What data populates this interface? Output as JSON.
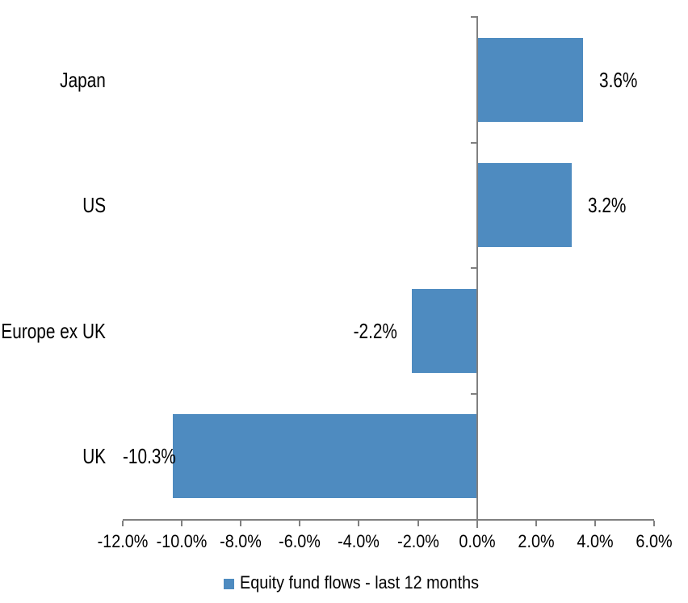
{
  "chart_data": {
    "type": "bar",
    "orientation": "horizontal",
    "categories": [
      "Japan",
      "US",
      "Europe ex UK",
      "UK"
    ],
    "series": [
      {
        "name": "Equity fund flows - last 12 months",
        "values": [
          3.6,
          3.2,
          -2.2,
          -10.3
        ]
      }
    ],
    "data_labels": [
      "3.6%",
      "3.2%",
      "-2.2%",
      "-10.3%"
    ],
    "x_axis": {
      "min": -12,
      "max": 6,
      "tick_step": 2,
      "tick_values": [
        -12,
        -10,
        -8,
        -6,
        -4,
        -2,
        0,
        2,
        4,
        6
      ],
      "tick_labels": [
        "-12.0%",
        "-10.0%",
        "-8.0%",
        "-6.0%",
        "-4.0%",
        "-2.0%",
        "0.0%",
        "2.0%",
        "4.0%",
        "6.0%"
      ]
    },
    "legend": {
      "label": "Equity fund flows - last 12 months",
      "position": "bottom"
    },
    "colors": {
      "bar": "#4E8BC0",
      "axis": "#808080",
      "text": "#000000",
      "background": "#FFFFFF"
    },
    "grid": false,
    "title": ""
  }
}
